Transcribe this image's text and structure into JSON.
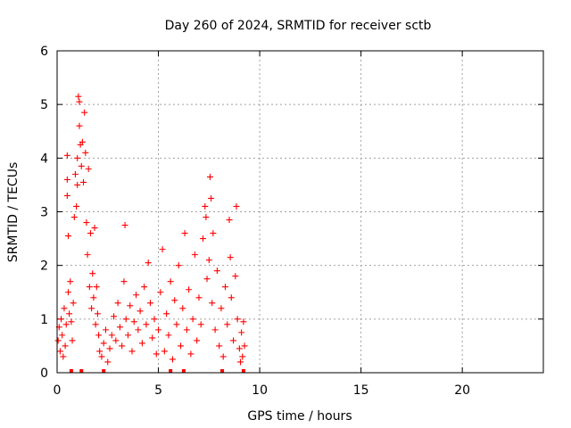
{
  "chart_data": {
    "type": "scatter",
    "title": "Day 260 of 2024, SRMTID for receiver sctb",
    "xlabel": "GPS time / hours",
    "ylabel": "SRMTID / TECUs",
    "xlim": [
      0,
      24
    ],
    "ylim": [
      0,
      6
    ],
    "x_ticks": [
      0,
      5,
      10,
      15,
      20
    ],
    "y_ticks": [
      0,
      1,
      2,
      3,
      4,
      5,
      6
    ],
    "grid": true,
    "marker": "plus",
    "color": "#ff0000",
    "series": [
      {
        "name": "SRMTID",
        "points": [
          [
            0.05,
            0.6
          ],
          [
            0.1,
            0.85
          ],
          [
            0.15,
            0.4
          ],
          [
            0.2,
            1.0
          ],
          [
            0.25,
            0.7
          ],
          [
            0.3,
            0.3
          ],
          [
            0.35,
            1.2
          ],
          [
            0.4,
            0.5
          ],
          [
            0.45,
            0.9
          ],
          [
            0.5,
            4.05
          ],
          [
            0.5,
            3.6
          ],
          [
            0.5,
            3.3
          ],
          [
            0.55,
            2.55
          ],
          [
            0.55,
            1.5
          ],
          [
            0.6,
            1.1
          ],
          [
            0.65,
            1.7
          ],
          [
            0.7,
            0.95
          ],
          [
            0.75,
            0.6
          ],
          [
            0.8,
            1.3
          ],
          [
            0.85,
            2.9
          ],
          [
            0.9,
            3.7
          ],
          [
            0.95,
            3.1
          ],
          [
            1.0,
            4.0
          ],
          [
            1.0,
            3.5
          ],
          [
            1.05,
            5.15
          ],
          [
            1.1,
            5.05
          ],
          [
            1.1,
            4.6
          ],
          [
            1.15,
            4.25
          ],
          [
            1.2,
            3.85
          ],
          [
            1.25,
            4.3
          ],
          [
            1.3,
            3.55
          ],
          [
            1.35,
            4.85
          ],
          [
            1.4,
            4.1
          ],
          [
            1.45,
            2.8
          ],
          [
            1.5,
            2.2
          ],
          [
            1.55,
            3.8
          ],
          [
            1.6,
            1.6
          ],
          [
            1.65,
            2.6
          ],
          [
            1.7,
            1.2
          ],
          [
            1.75,
            1.85
          ],
          [
            1.8,
            1.4
          ],
          [
            1.85,
            2.7
          ],
          [
            1.9,
            0.9
          ],
          [
            1.95,
            1.6
          ],
          [
            2.0,
            1.1
          ],
          [
            2.05,
            0.7
          ],
          [
            2.1,
            0.4
          ],
          [
            2.2,
            0.3
          ],
          [
            2.3,
            0.55
          ],
          [
            2.4,
            0.8
          ],
          [
            2.5,
            0.2
          ],
          [
            2.6,
            0.45
          ],
          [
            2.7,
            0.7
          ],
          [
            2.8,
            1.05
          ],
          [
            2.9,
            0.6
          ],
          [
            3.0,
            1.3
          ],
          [
            3.1,
            0.85
          ],
          [
            3.2,
            0.5
          ],
          [
            3.3,
            1.7
          ],
          [
            3.35,
            2.75
          ],
          [
            3.4,
            1.0
          ],
          [
            3.5,
            0.7
          ],
          [
            3.6,
            1.25
          ],
          [
            3.7,
            0.4
          ],
          [
            3.8,
            0.95
          ],
          [
            3.9,
            1.45
          ],
          [
            4.0,
            0.8
          ],
          [
            4.1,
            1.15
          ],
          [
            4.2,
            0.55
          ],
          [
            4.3,
            1.6
          ],
          [
            4.4,
            0.9
          ],
          [
            4.5,
            2.05
          ],
          [
            4.6,
            1.3
          ],
          [
            4.7,
            0.65
          ],
          [
            4.8,
            1.0
          ],
          [
            4.9,
            0.35
          ],
          [
            5.0,
            0.8
          ],
          [
            5.1,
            1.5
          ],
          [
            5.2,
            2.3
          ],
          [
            5.3,
            0.4
          ],
          [
            5.4,
            1.1
          ],
          [
            5.5,
            0.7
          ],
          [
            5.6,
            1.7
          ],
          [
            5.7,
            0.25
          ],
          [
            5.8,
            1.35
          ],
          [
            5.9,
            0.9
          ],
          [
            6.0,
            2.0
          ],
          [
            6.1,
            0.5
          ],
          [
            6.2,
            1.2
          ],
          [
            6.3,
            2.6
          ],
          [
            6.4,
            0.8
          ],
          [
            6.5,
            1.55
          ],
          [
            6.6,
            0.35
          ],
          [
            6.7,
            1.0
          ],
          [
            6.8,
            2.2
          ],
          [
            6.9,
            0.6
          ],
          [
            7.0,
            1.4
          ],
          [
            7.1,
            0.9
          ],
          [
            7.2,
            2.5
          ],
          [
            7.3,
            3.1
          ],
          [
            7.35,
            2.9
          ],
          [
            7.4,
            1.75
          ],
          [
            7.5,
            2.1
          ],
          [
            7.55,
            3.65
          ],
          [
            7.6,
            3.25
          ],
          [
            7.65,
            1.3
          ],
          [
            7.7,
            2.6
          ],
          [
            7.8,
            0.8
          ],
          [
            7.9,
            1.9
          ],
          [
            8.0,
            0.5
          ],
          [
            8.1,
            1.2
          ],
          [
            8.2,
            0.3
          ],
          [
            8.3,
            1.6
          ],
          [
            8.4,
            0.9
          ],
          [
            8.5,
            2.85
          ],
          [
            8.55,
            2.15
          ],
          [
            8.6,
            1.4
          ],
          [
            8.7,
            0.6
          ],
          [
            8.8,
            1.8
          ],
          [
            8.85,
            3.1
          ],
          [
            8.9,
            1.0
          ],
          [
            9.0,
            0.45
          ],
          [
            9.05,
            0.2
          ],
          [
            9.1,
            0.75
          ],
          [
            9.15,
            0.3
          ],
          [
            9.2,
            0.95
          ],
          [
            9.25,
            0.5
          ]
        ],
        "zero_points_x": [
          0.7,
          1.2,
          2.3,
          5.6,
          6.25,
          8.15,
          9.2
        ]
      }
    ]
  }
}
